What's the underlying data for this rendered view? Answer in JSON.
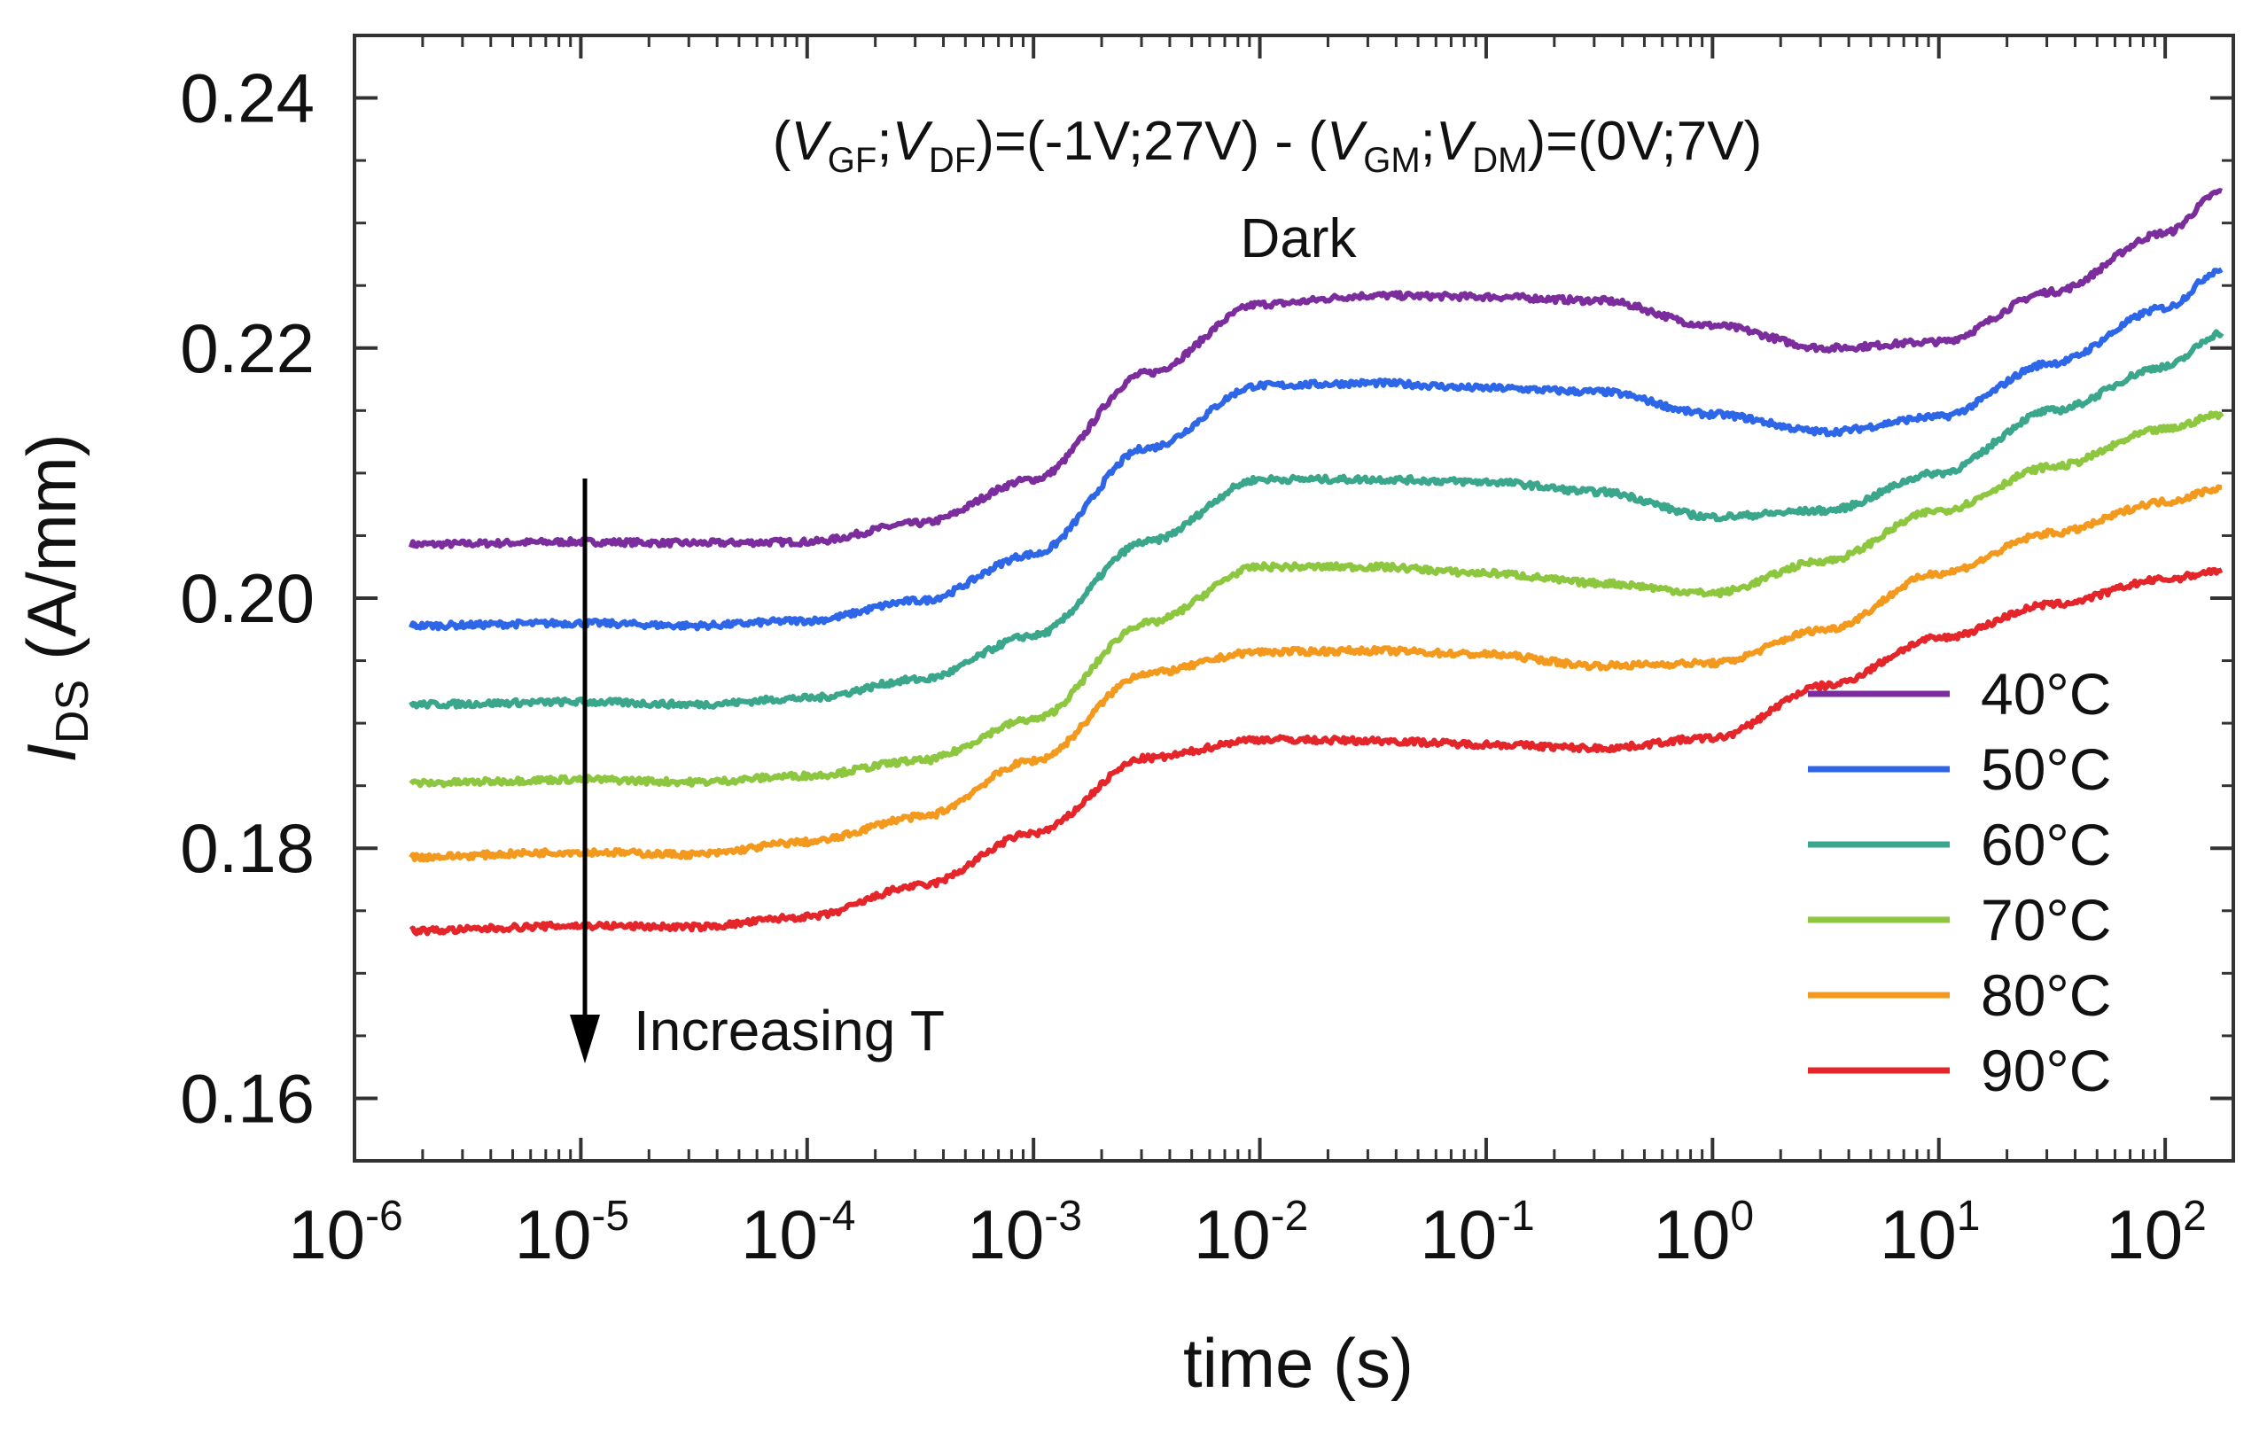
{
  "chart_data": {
    "type": "line",
    "title_parts": {
      "open": "(",
      "v1": "V",
      "s1": "GF",
      "sep1": ";",
      "v2": "V",
      "s2": "DF",
      "mid": ")=(-1V;27V) - (",
      "v3": "V",
      "s3": "GM",
      "sep2": ";",
      "v4": "V",
      "s4": "DM",
      "close": ")=(0V;7V)"
    },
    "subtitle": "Dark",
    "xlabel": "time (s)",
    "ylabel_main": "I",
    "ylabel_sub": "DS",
    "ylabel_unit": "(A/mm)",
    "xscale": "log",
    "xlim": [
      1e-06,
      200
    ],
    "ylim": [
      0.155,
      0.245
    ],
    "x_ticks": [
      {
        "base": "10",
        "exp": "-6"
      },
      {
        "base": "10",
        "exp": "-5"
      },
      {
        "base": "10",
        "exp": "-4"
      },
      {
        "base": "10",
        "exp": "-3"
      },
      {
        "base": "10",
        "exp": "-2"
      },
      {
        "base": "10",
        "exp": "-1"
      },
      {
        "base": "10",
        "exp": "0"
      },
      {
        "base": "10",
        "exp": "1"
      },
      {
        "base": "10",
        "exp": "2"
      }
    ],
    "x_tick_values": [
      -6,
      -5,
      -4,
      -3,
      -2,
      -1,
      0,
      1,
      2
    ],
    "y_tick_values": [
      0.16,
      0.18,
      0.2,
      0.22,
      0.24
    ],
    "y_tick_labels": [
      "0.16",
      "0.18",
      "0.20",
      "0.22",
      "0.24"
    ],
    "annotation": "Increasing  T",
    "legend_position": "bottom-right",
    "log10_time": [
      -5.75,
      -5,
      -4.5,
      -4,
      -3.5,
      -3,
      -2.5,
      -2,
      -1.5,
      -1,
      -0.5,
      0,
      0.5,
      1,
      1.5,
      2,
      2.25
    ],
    "series": [
      {
        "name": "40°C",
        "color": "#7B2D9E",
        "values": [
          0.2043,
          0.2045,
          0.2044,
          0.2045,
          0.206,
          0.2095,
          0.218,
          0.2235,
          0.2242,
          0.2241,
          0.2238,
          0.2218,
          0.22,
          0.2205,
          0.2245,
          0.2292,
          0.2325
        ]
      },
      {
        "name": "50°C",
        "color": "#2E66E8",
        "values": [
          0.1978,
          0.198,
          0.1978,
          0.1982,
          0.1998,
          0.2035,
          0.212,
          0.217,
          0.2172,
          0.2168,
          0.2165,
          0.2147,
          0.2133,
          0.2145,
          0.2188,
          0.2232,
          0.2263
        ]
      },
      {
        "name": "60°C",
        "color": "#3AA68C",
        "values": [
          0.1915,
          0.1917,
          0.1915,
          0.192,
          0.1935,
          0.197,
          0.2045,
          0.2095,
          0.2095,
          0.2093,
          0.2085,
          0.2065,
          0.207,
          0.21,
          0.215,
          0.2185,
          0.2212
        ]
      },
      {
        "name": "70°C",
        "color": "#8DC63F",
        "values": [
          0.1852,
          0.1855,
          0.1853,
          0.1858,
          0.187,
          0.1903,
          0.198,
          0.2025,
          0.2025,
          0.202,
          0.2012,
          0.2004,
          0.203,
          0.207,
          0.2105,
          0.2135,
          0.2147
        ]
      },
      {
        "name": "80°C",
        "color": "#F39A1E",
        "values": [
          0.1793,
          0.1797,
          0.1795,
          0.1805,
          0.1825,
          0.187,
          0.194,
          0.1957,
          0.1958,
          0.1955,
          0.1946,
          0.1948,
          0.1975,
          0.202,
          0.2052,
          0.2077,
          0.2088
        ]
      },
      {
        "name": "90°C",
        "color": "#E4262B",
        "values": [
          0.1734,
          0.1738,
          0.1737,
          0.1745,
          0.177,
          0.1812,
          0.1872,
          0.1887,
          0.1886,
          0.1883,
          0.188,
          0.1888,
          0.193,
          0.1968,
          0.1995,
          0.2015,
          0.2022
        ]
      }
    ]
  }
}
